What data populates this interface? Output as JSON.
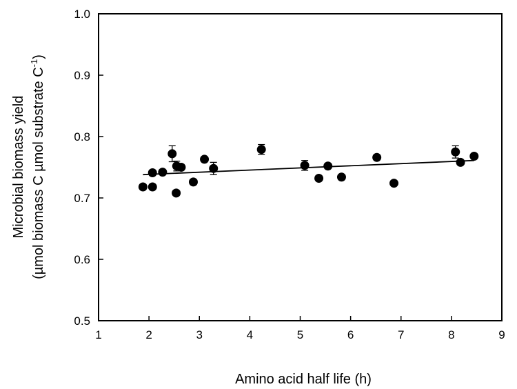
{
  "chart_data": {
    "type": "scatter",
    "title": "",
    "xlabel": "Amino acid half life (h)",
    "ylabel_line1": "Microbial biomass yield",
    "ylabel_line2_main": "(µmol biomass C µmol substrate C",
    "ylabel_line2_sup": "-1",
    "ylabel_line2_end": ")",
    "xlim": [
      1,
      9
    ],
    "ylim": [
      0.5,
      1.0
    ],
    "x_ticks": [
      "1",
      "2",
      "3",
      "4",
      "5",
      "6",
      "7",
      "8",
      "9"
    ],
    "x_tick_values": [
      1,
      2,
      3,
      4,
      5,
      6,
      7,
      8,
      9
    ],
    "y_ticks": [
      "0.5",
      "0.6",
      "0.7",
      "0.8",
      "0.9",
      "1.0"
    ],
    "y_tick_values": [
      0.5,
      0.6,
      0.7,
      0.8,
      0.9,
      1.0
    ],
    "grid": false,
    "marker_color": "#000000",
    "points": [
      {
        "x": 1.88,
        "y": 0.718,
        "err": 0
      },
      {
        "x": 2.07,
        "y": 0.718,
        "err": 0
      },
      {
        "x": 2.07,
        "y": 0.741,
        "err": 0
      },
      {
        "x": 2.27,
        "y": 0.742,
        "err": 0
      },
      {
        "x": 2.46,
        "y": 0.772,
        "err": 0.013
      },
      {
        "x": 2.54,
        "y": 0.708,
        "err": 0
      },
      {
        "x": 2.55,
        "y": 0.752,
        "err": 0.008
      },
      {
        "x": 2.64,
        "y": 0.75,
        "err": 0
      },
      {
        "x": 2.88,
        "y": 0.726,
        "err": 0
      },
      {
        "x": 3.1,
        "y": 0.763,
        "err": 0
      },
      {
        "x": 3.28,
        "y": 0.748,
        "err": 0.01
      },
      {
        "x": 4.23,
        "y": 0.779,
        "err": 0.008
      },
      {
        "x": 5.09,
        "y": 0.753,
        "err": 0.008
      },
      {
        "x": 5.37,
        "y": 0.732,
        "err": 0
      },
      {
        "x": 5.55,
        "y": 0.752,
        "err": 0
      },
      {
        "x": 5.82,
        "y": 0.734,
        "err": 0
      },
      {
        "x": 6.52,
        "y": 0.766,
        "err": 0
      },
      {
        "x": 6.86,
        "y": 0.724,
        "err": 0
      },
      {
        "x": 8.08,
        "y": 0.775,
        "err": 0.01
      },
      {
        "x": 8.18,
        "y": 0.758,
        "err": 0
      },
      {
        "x": 8.45,
        "y": 0.768,
        "err": 0
      }
    ],
    "trendline": {
      "x": [
        1.88,
        8.45
      ],
      "y": [
        0.738,
        0.761
      ]
    }
  }
}
